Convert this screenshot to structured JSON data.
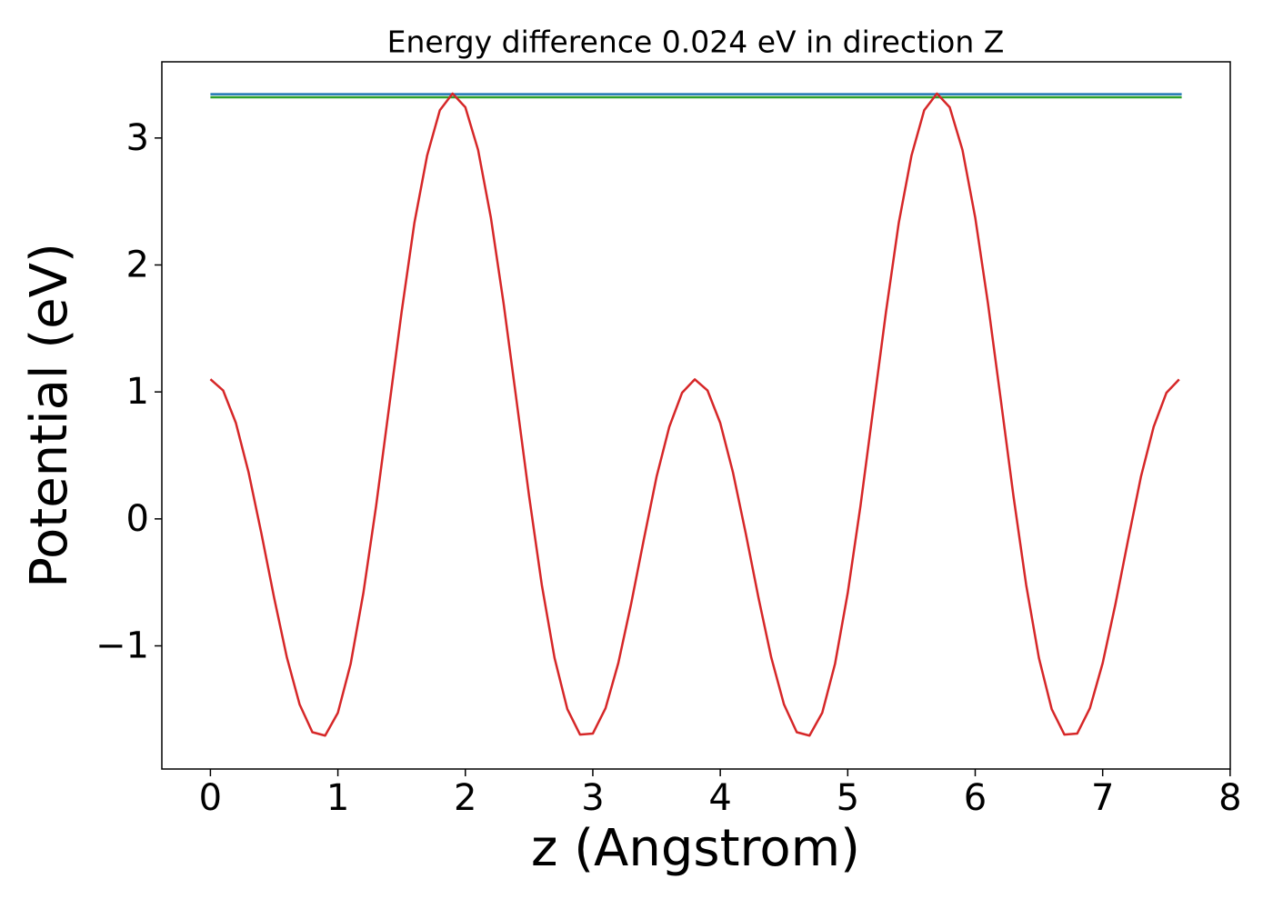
{
  "chart_data": {
    "type": "line",
    "title": "Energy difference 0.024 eV in direction Z",
    "xlabel": "z (Angstrom)",
    "ylabel": "Potential (eV)",
    "xlim": [
      -0.381,
      8.001
    ],
    "ylim": [
      -1.97,
      3.6
    ],
    "xticks": [
      0,
      1,
      2,
      3,
      4,
      5,
      6,
      7,
      8
    ],
    "yticks": [
      {
        "value": -1,
        "label": "−1"
      },
      0,
      1,
      2,
      3
    ],
    "grid": false,
    "series": [
      {
        "color": "#1f77b4",
        "x": [
          0,
          7.62
        ],
        "values": [
          3.345,
          3.345
        ]
      },
      {
        "color": "#2ca02c",
        "x": [
          0,
          7.62
        ],
        "values": [
          3.321,
          3.321
        ]
      },
      {
        "color": "#d62728",
        "x": [
          0,
          0.1,
          0.2,
          0.3,
          0.4,
          0.5,
          0.6,
          0.7,
          0.8,
          0.9,
          1.0,
          1.1,
          1.2,
          1.3,
          1.4,
          1.5,
          1.6,
          1.7,
          1.8,
          1.9,
          2.0,
          2.1,
          2.2,
          2.3,
          2.4,
          2.5,
          2.6,
          2.7,
          2.8,
          2.9,
          3.0,
          3.1,
          3.2,
          3.3,
          3.4,
          3.5,
          3.6,
          3.7,
          3.8,
          3.9,
          4.0,
          4.1,
          4.2,
          4.3,
          4.4,
          4.5,
          4.6,
          4.7,
          4.8,
          4.9,
          5.0,
          5.1,
          5.2,
          5.3,
          5.4,
          5.5,
          5.6,
          5.7,
          5.8,
          5.9,
          6.0,
          6.1,
          6.2,
          6.3,
          6.4,
          6.5,
          6.6,
          6.7,
          6.8,
          6.9,
          7.0,
          7.1,
          7.2,
          7.3,
          7.4,
          7.5,
          7.6
        ],
        "values": [
          1.1,
          1.011,
          0.755,
          0.364,
          -0.115,
          -0.622,
          -1.092,
          -1.462,
          -1.68,
          -1.707,
          -1.527,
          -1.143,
          -0.583,
          0.102,
          0.866,
          1.63,
          2.33,
          2.861,
          3.219,
          3.35,
          3.242,
          2.906,
          2.374,
          1.698,
          0.944,
          0.181,
          -0.521,
          -1.096,
          -1.498,
          -1.699,
          -1.691,
          -1.491,
          -1.136,
          -0.672,
          -0.163,
          0.331,
          0.725,
          0.993,
          1.099,
          1.011,
          0.755,
          0.364,
          -0.115,
          -0.622,
          -1.092,
          -1.462,
          -1.68,
          -1.707,
          -1.527,
          -1.143,
          -0.583,
          0.102,
          0.866,
          1.63,
          2.33,
          2.861,
          3.219,
          3.35,
          3.242,
          2.906,
          2.374,
          1.698,
          0.944,
          0.181,
          -0.521,
          -1.096,
          -1.498,
          -1.699,
          -1.691,
          -1.491,
          -1.136,
          -0.672,
          -0.163,
          0.331,
          0.725,
          0.993,
          1.099
        ]
      }
    ]
  }
}
